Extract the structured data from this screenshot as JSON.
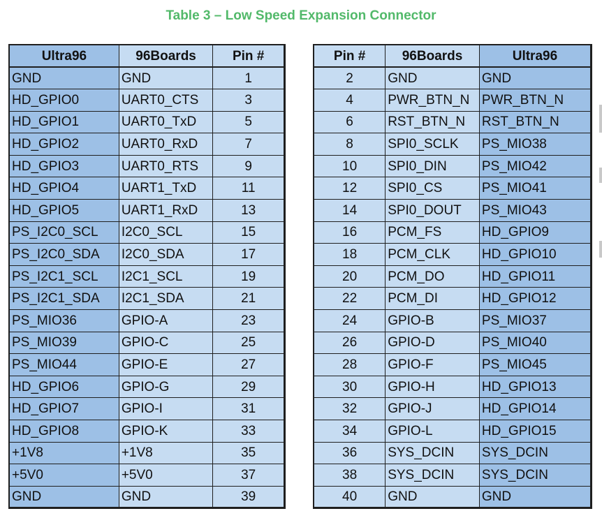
{
  "title": "Table 3 – Low Speed Expansion Connector",
  "colors": {
    "title": "#52b96a",
    "header_dark": "#9dc0e6",
    "cell_light": "#c6dcf2"
  },
  "left_table": {
    "headers": [
      "Ultra96",
      "96Boards",
      "Pin #"
    ],
    "rows": [
      [
        "GND",
        "GND",
        "1"
      ],
      [
        "HD_GPIO0",
        "UART0_CTS",
        "3"
      ],
      [
        "HD_GPIO1",
        "UART0_TxD",
        "5"
      ],
      [
        "HD_GPIO2",
        "UART0_RxD",
        "7"
      ],
      [
        "HD_GPIO3",
        "UART0_RTS",
        "9"
      ],
      [
        "HD_GPIO4",
        "UART1_TxD",
        "11"
      ],
      [
        "HD_GPIO5",
        "UART1_RxD",
        "13"
      ],
      [
        "PS_I2C0_SCL",
        "I2C0_SCL",
        "15"
      ],
      [
        "PS_I2C0_SDA",
        "I2C0_SDA",
        "17"
      ],
      [
        "PS_I2C1_SCL",
        "I2C1_SCL",
        "19"
      ],
      [
        "PS_I2C1_SDA",
        "I2C1_SDA",
        "21"
      ],
      [
        "PS_MIO36",
        "GPIO-A",
        "23"
      ],
      [
        "PS_MIO39",
        "GPIO-C",
        "25"
      ],
      [
        "PS_MIO44",
        "GPIO-E",
        "27"
      ],
      [
        "HD_GPIO6",
        "GPIO-G",
        "29"
      ],
      [
        "HD_GPIO7",
        "GPIO-I",
        "31"
      ],
      [
        "HD_GPIO8",
        "GPIO-K",
        "33"
      ],
      [
        "+1V8",
        "+1V8",
        "35"
      ],
      [
        "+5V0",
        "+5V0",
        "37"
      ],
      [
        "GND",
        "GND",
        "39"
      ]
    ]
  },
  "right_table": {
    "headers": [
      "Pin #",
      "96Boards",
      "Ultra96"
    ],
    "rows": [
      [
        "2",
        "GND",
        "GND"
      ],
      [
        "4",
        "PWR_BTN_N",
        "PWR_BTN_N"
      ],
      [
        "6",
        "RST_BTN_N",
        "RST_BTN_N"
      ],
      [
        "8",
        "SPI0_SCLK",
        "PS_MIO38"
      ],
      [
        "10",
        "SPI0_DIN",
        "PS_MIO42"
      ],
      [
        "12",
        "SPI0_CS",
        "PS_MIO41"
      ],
      [
        "14",
        "SPI0_DOUT",
        "PS_MIO43"
      ],
      [
        "16",
        "PCM_FS",
        "HD_GPIO9"
      ],
      [
        "18",
        "PCM_CLK",
        "HD_GPIO10"
      ],
      [
        "20",
        "PCM_DO",
        "HD_GPIO11"
      ],
      [
        "22",
        "PCM_DI",
        "HD_GPIO12"
      ],
      [
        "24",
        "GPIO-B",
        "PS_MIO37"
      ],
      [
        "26",
        "GPIO-D",
        "PS_MIO40"
      ],
      [
        "28",
        "GPIO-F",
        "PS_MIO45"
      ],
      [
        "30",
        "GPIO-H",
        "HD_GPIO13"
      ],
      [
        "32",
        "GPIO-J",
        "HD_GPIO14"
      ],
      [
        "34",
        "GPIO-L",
        "HD_GPIO15"
      ],
      [
        "36",
        "SYS_DCIN",
        "SYS_DCIN"
      ],
      [
        "38",
        "SYS_DCIN",
        "SYS_DCIN"
      ],
      [
        "40",
        "GND",
        "GND"
      ]
    ]
  }
}
